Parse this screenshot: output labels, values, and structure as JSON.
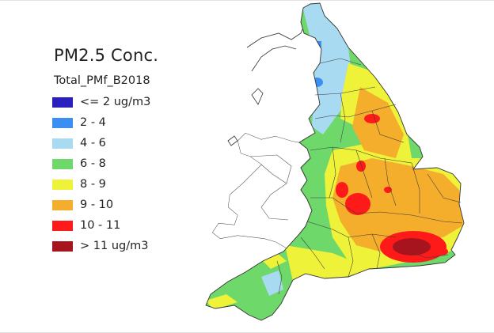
{
  "legend": {
    "title": "PM2.5 Conc.",
    "field": "Total_PMf_B2018",
    "classes": [
      {
        "label": "<= 2 ug/m3",
        "color": "#2a1fbf"
      },
      {
        "label": "2 - 4",
        "color": "#3b8ff2"
      },
      {
        "label": "4 - 6",
        "color": "#a8daf2"
      },
      {
        "label": "6 - 8",
        "color": "#6fd86a"
      },
      {
        "label": "8 - 9",
        "color": "#eef238"
      },
      {
        "label": "9 - 10",
        "color": "#f5ad2c"
      },
      {
        "label": "10 - 11",
        "color": "#ff1a1a"
      },
      {
        "label": "> 11 ug/m3",
        "color": "#a8141e"
      }
    ]
  }
}
